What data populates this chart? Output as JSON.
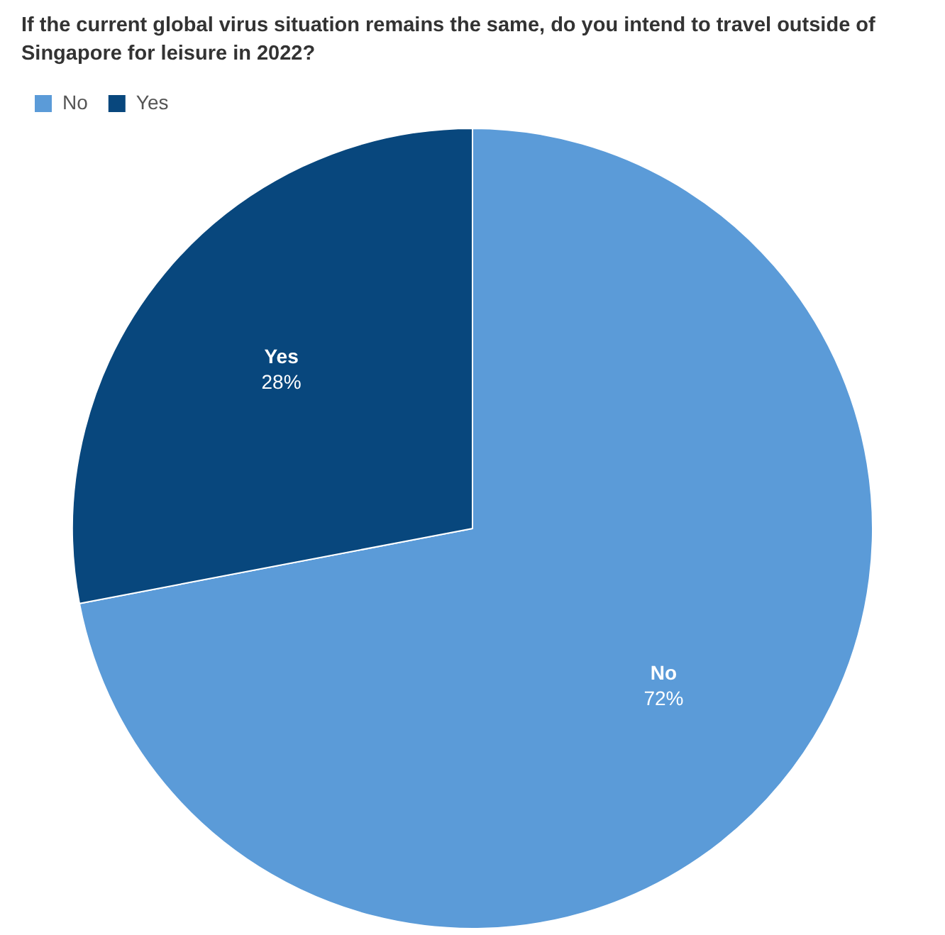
{
  "chart_data": {
    "type": "pie",
    "title": "If the current global virus situation remains the same, do you intend to travel outside of Singapore for leisure in 2022?",
    "categories": [
      "No",
      "Yes"
    ],
    "values": [
      72,
      28
    ],
    "colors": [
      "#5b9bd8",
      "#08477d"
    ],
    "value_labels": [
      "72%",
      "28%"
    ],
    "legend": "top left"
  }
}
